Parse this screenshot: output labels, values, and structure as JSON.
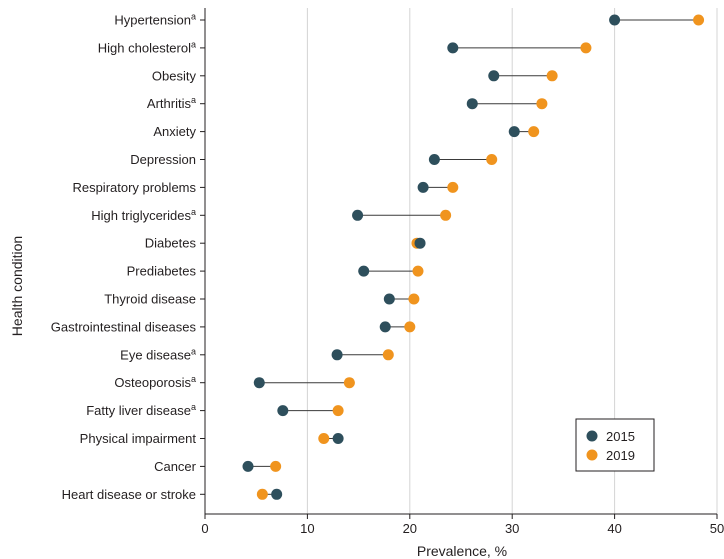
{
  "chart_data": {
    "type": "dot-plot",
    "xlabel": "Prevalence, %",
    "ylabel": "Health condition",
    "xlim": [
      0,
      50
    ],
    "xticks": [
      0,
      10,
      20,
      30,
      40,
      50
    ],
    "grid": "vertical",
    "legend_position": "bottom-right",
    "series": [
      {
        "name": "2015",
        "color": "#2e4f5c"
      },
      {
        "name": "2019",
        "color": "#f0941e"
      }
    ],
    "categories": [
      {
        "label": "Hypertension",
        "sup": "a",
        "v2015": 40.0,
        "v2019": 48.2
      },
      {
        "label": "High cholesterol",
        "sup": "a",
        "v2015": 24.2,
        "v2019": 37.2
      },
      {
        "label": "Obesity",
        "sup": "",
        "v2015": 28.2,
        "v2019": 33.9
      },
      {
        "label": "Arthritis",
        "sup": "a",
        "v2015": 26.1,
        "v2019": 32.9
      },
      {
        "label": "Anxiety",
        "sup": "",
        "v2015": 30.2,
        "v2019": 32.1
      },
      {
        "label": "Depression",
        "sup": "",
        "v2015": 22.4,
        "v2019": 28.0
      },
      {
        "label": "Respiratory problems",
        "sup": "",
        "v2015": 21.3,
        "v2019": 24.2
      },
      {
        "label": "High triglycerides",
        "sup": "a",
        "v2015": 14.9,
        "v2019": 23.5
      },
      {
        "label": "Diabetes",
        "sup": "",
        "v2015": 21.0,
        "v2019": 20.7
      },
      {
        "label": "Prediabetes",
        "sup": "",
        "v2015": 15.5,
        "v2019": 20.8
      },
      {
        "label": "Thyroid disease",
        "sup": "",
        "v2015": 18.0,
        "v2019": 20.4
      },
      {
        "label": "Gastrointestinal diseases",
        "sup": "",
        "v2015": 17.6,
        "v2019": 20.0
      },
      {
        "label": "Eye disease",
        "sup": "a",
        "v2015": 12.9,
        "v2019": 17.9
      },
      {
        "label": "Osteoporosis",
        "sup": "a",
        "v2015": 5.3,
        "v2019": 14.1
      },
      {
        "label": "Fatty liver disease",
        "sup": "a",
        "v2015": 7.6,
        "v2019": 13.0
      },
      {
        "label": "Physical impairment",
        "sup": "",
        "v2015": 13.0,
        "v2019": 11.6
      },
      {
        "label": "Cancer",
        "sup": "",
        "v2015": 4.2,
        "v2019": 6.9
      },
      {
        "label": "Heart disease or stroke",
        "sup": "",
        "v2015": 7.0,
        "v2019": 5.6
      }
    ]
  }
}
